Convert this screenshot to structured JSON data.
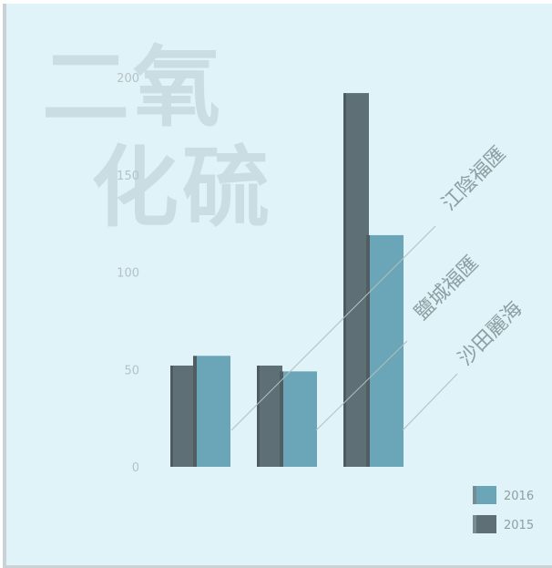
{
  "watermark": {
    "line1": "二氧",
    "line2": "化硫"
  },
  "chart_data": {
    "type": "bar",
    "title": "二氧化硫",
    "categories": [
      "沙田麗海",
      "鹽城福匯",
      "江陰福匯"
    ],
    "series": [
      {
        "name": "2015",
        "values": [
          52,
          52,
          192
        ],
        "color": "#5e6f76"
      },
      {
        "name": "2016",
        "values": [
          57,
          49,
          119
        ],
        "color": "#6aa5b8"
      }
    ],
    "ylim": [
      0,
      200
    ],
    "yticks": [
      0,
      50,
      100,
      150,
      200
    ],
    "grid": false,
    "legend_position": "bottom-right"
  }
}
